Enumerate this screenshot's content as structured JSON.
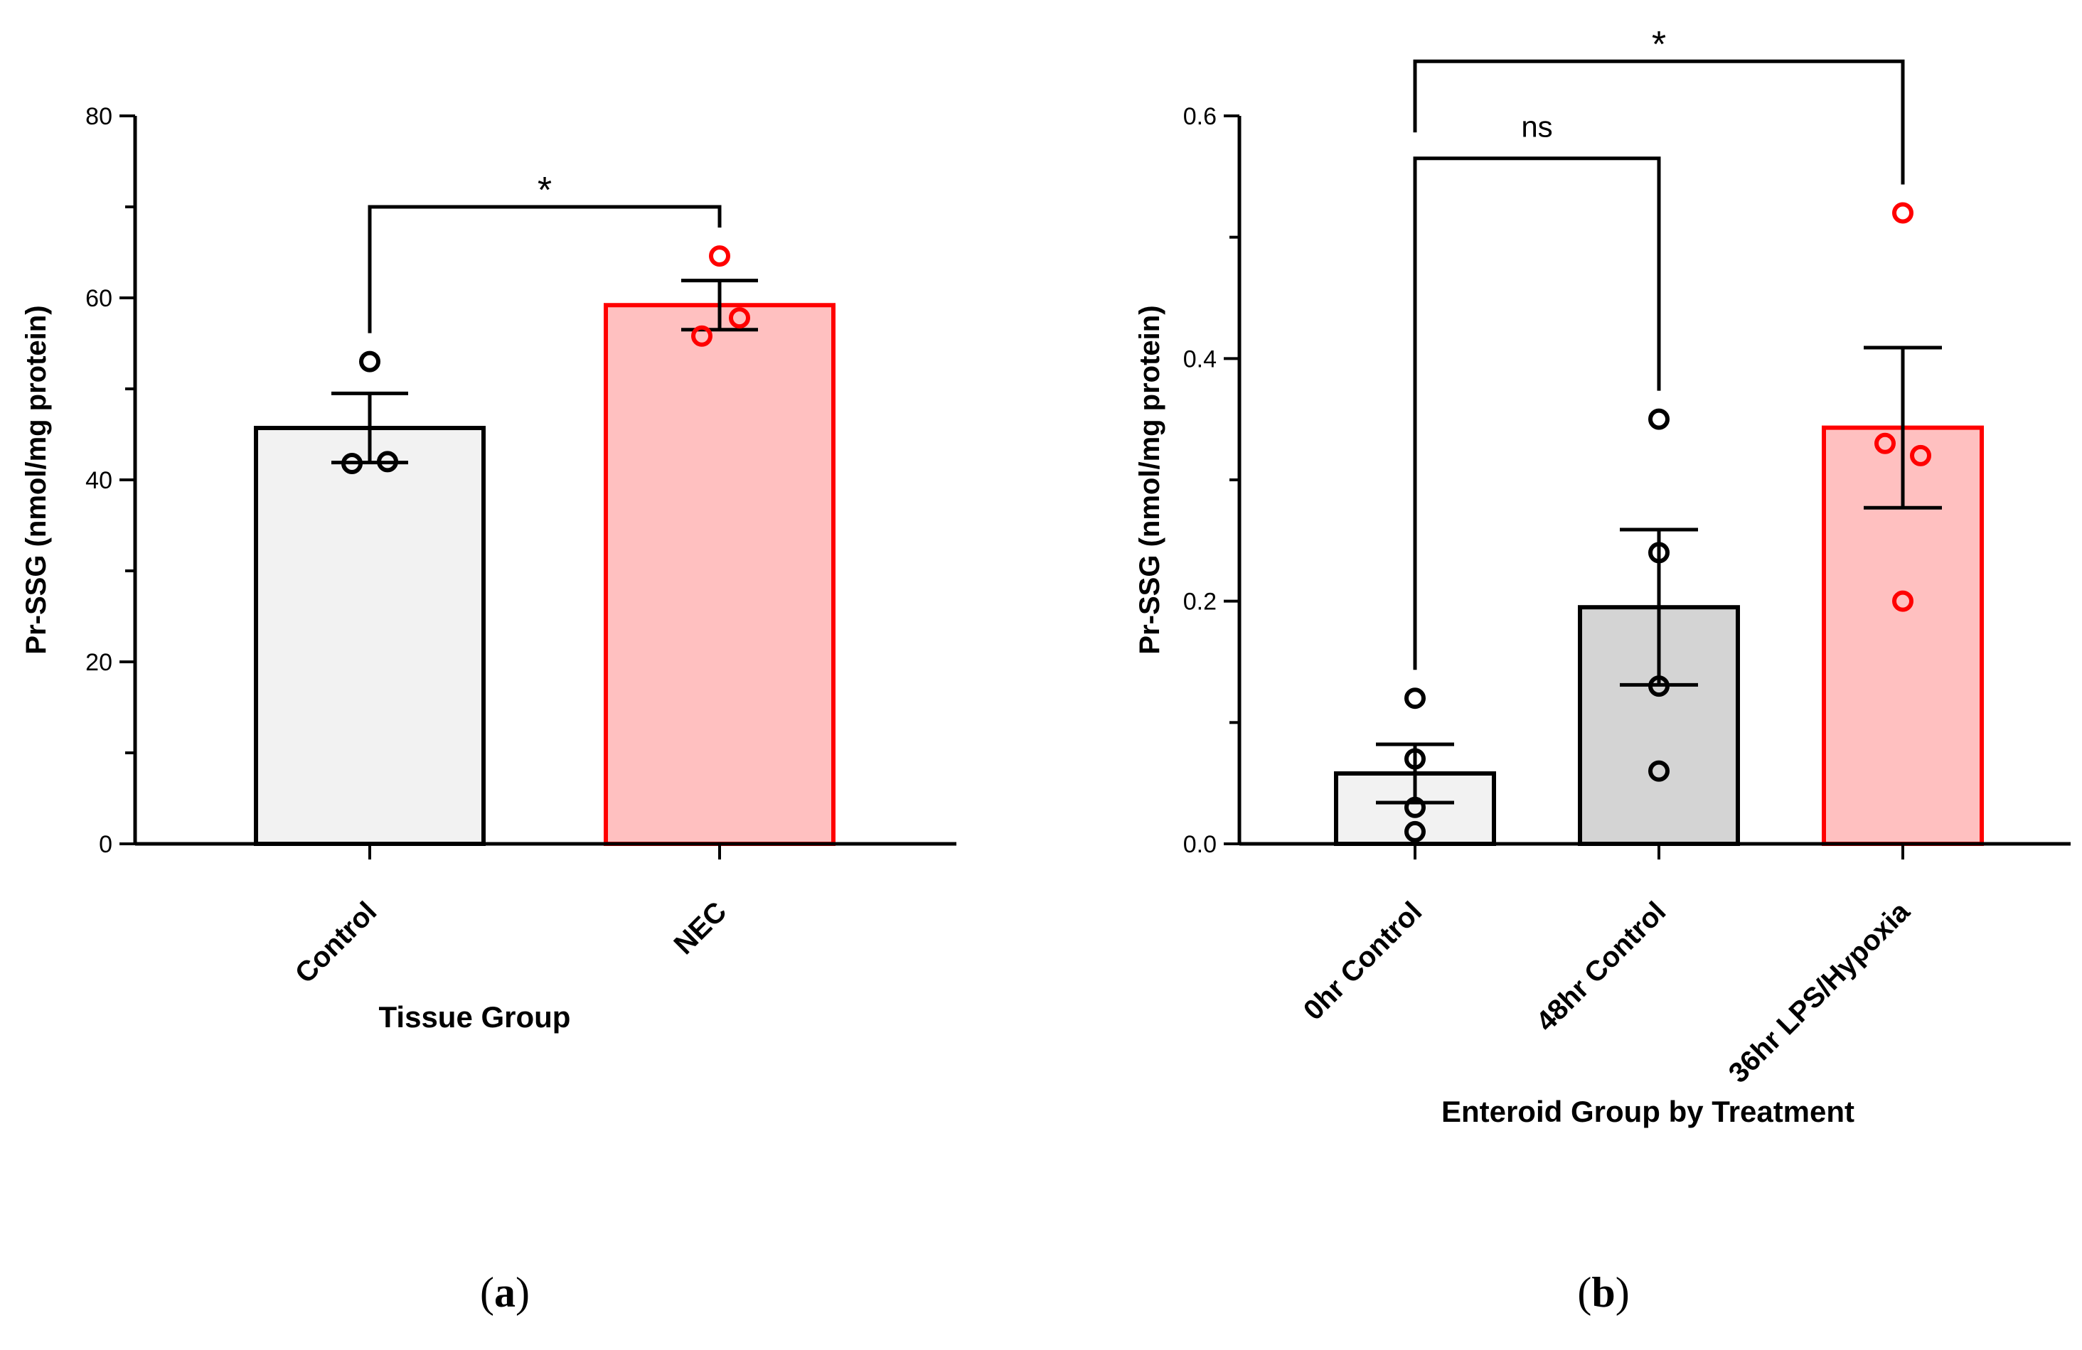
{
  "chart_data": [
    {
      "panel": "a",
      "type": "bar",
      "title": "",
      "xlabel": "Tissue Group",
      "ylabel": "Pr-SSG  (nmol/mg protein)",
      "ylim": [
        0,
        80
      ],
      "yticks": [
        0,
        20,
        40,
        60,
        80
      ],
      "ytick_labels": [
        "0",
        "20",
        "40",
        "60",
        "80"
      ],
      "categories": [
        "Control",
        "NEC"
      ],
      "values": [
        45.7,
        59.2
      ],
      "sem": [
        3.8,
        2.7
      ],
      "points": [
        [
          53.0,
          41.8,
          42.0
        ],
        [
          64.6,
          57.8,
          55.8
        ]
      ],
      "bar_fill": [
        "#f2f2f2",
        "#ffc0c0"
      ],
      "bar_stroke": [
        "#000000",
        "#ff0000"
      ],
      "point_color": [
        "#000000",
        "#ff0000"
      ],
      "comparisons": [
        {
          "from": 0,
          "to": 1,
          "label": "*",
          "height": 70
        }
      ],
      "panel_label": "a"
    },
    {
      "panel": "b",
      "type": "bar",
      "title": "",
      "xlabel": "Enteroid Group by Treatment",
      "ylabel": "Pr-SSG  (nmol/mg protein)",
      "ylim": [
        0,
        0.6
      ],
      "yticks": [
        0,
        0.2,
        0.4,
        0.6
      ],
      "ytick_labels": [
        "0.0",
        "0.2",
        "0.4",
        "0.6"
      ],
      "categories": [
        "0hr Control",
        "48hr Control",
        "36hr LPS/Hypoxia"
      ],
      "values": [
        0.058,
        0.195,
        0.343
      ],
      "sem": [
        0.024,
        0.064,
        0.066
      ],
      "points": [
        [
          0.12,
          0.07,
          0.03,
          0.01
        ],
        [
          0.35,
          0.24,
          0.13,
          0.06
        ],
        [
          0.52,
          0.33,
          0.32,
          0.2
        ]
      ],
      "bar_fill": [
        "#f2f2f2",
        "#d4d4d4",
        "#ffc0c0"
      ],
      "bar_stroke": [
        "#000000",
        "#000000",
        "#ff0000"
      ],
      "point_color": [
        "#000000",
        "#000000",
        "#ff0000"
      ],
      "comparisons": [
        {
          "from": 0,
          "to": 1,
          "label": "ns",
          "height": 0.565
        },
        {
          "from": 0,
          "to": 2,
          "label": "*",
          "height": 0.645
        }
      ],
      "panel_label": "b"
    }
  ]
}
